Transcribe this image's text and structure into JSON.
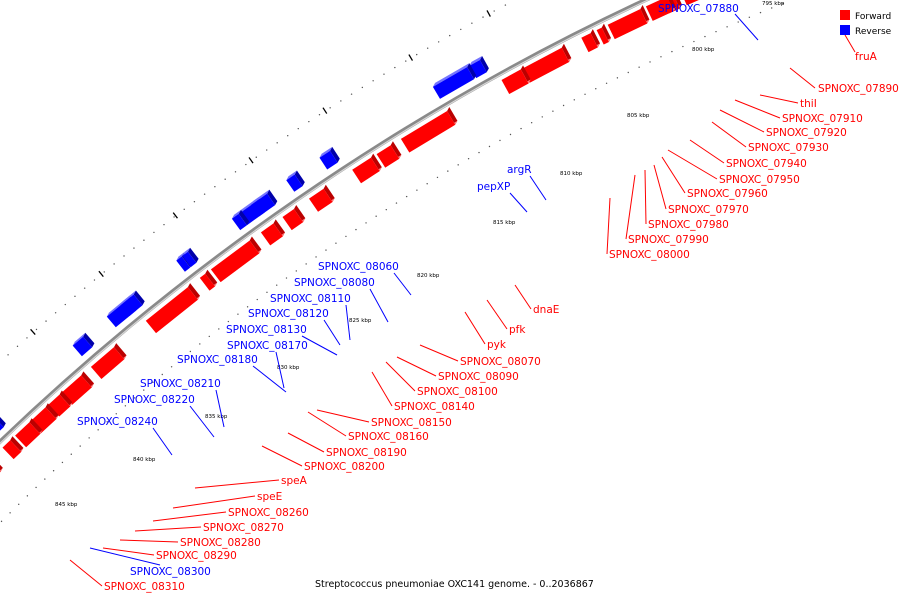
{
  "colors": {
    "forward": "#ff0000",
    "forward_dark": "#bb0000",
    "forward_top": "#ff7b7b",
    "reverse": "#0000ff",
    "reverse_dark": "#0000aa",
    "reverse_top": "#7474ff",
    "backbone": "#8a8a8a",
    "tick": "#000000"
  },
  "legend": {
    "forward_label": "Forward",
    "reverse_label": "Reverse"
  },
  "caption": "Streptococcus pneumoniae OXC141 genome. - 0..2036867",
  "kbp_labels": [
    "795 kbp",
    "800 kbp",
    "805 kbp",
    "810 kbp",
    "815 kbp",
    "820 kbp",
    "825 kbp",
    "830 kbp",
    "835 kbp",
    "840 kbp",
    "845 kbp"
  ],
  "forward_genes": [
    "fruA",
    "SPNOXC_07890",
    "thiI",
    "SPNOXC_07910",
    "SPNOXC_07920",
    "SPNOXC_07930",
    "SPNOXC_07940",
    "SPNOXC_07950",
    "SPNOXC_07960",
    "SPNOXC_07970",
    "SPNOXC_07980",
    "SPNOXC_07990",
    "SPNOXC_08000",
    "dnaE",
    "pfk",
    "pyk",
    "SPNOXC_08070",
    "SPNOXC_08090",
    "SPNOXC_08100",
    "SPNOXC_08140",
    "SPNOXC_08150",
    "SPNOXC_08160",
    "SPNOXC_08190",
    "SPNOXC_08200",
    "speA",
    "speE",
    "SPNOXC_08260",
    "SPNOXC_08270",
    "SPNOXC_08280",
    "SPNOXC_08290",
    "SPNOXC_08310"
  ],
  "reverse_genes": [
    "SPNOXC_07880",
    "argR",
    "pepXP",
    "SPNOXC_08060",
    "SPNOXC_08080",
    "SPNOXC_08110",
    "SPNOXC_08120",
    "SPNOXC_08130",
    "SPNOXC_08170",
    "SPNOXC_08180",
    "SPNOXC_08210",
    "SPNOXC_08220",
    "SPNOXC_08240",
    "SPNOXC_08300"
  ]
}
